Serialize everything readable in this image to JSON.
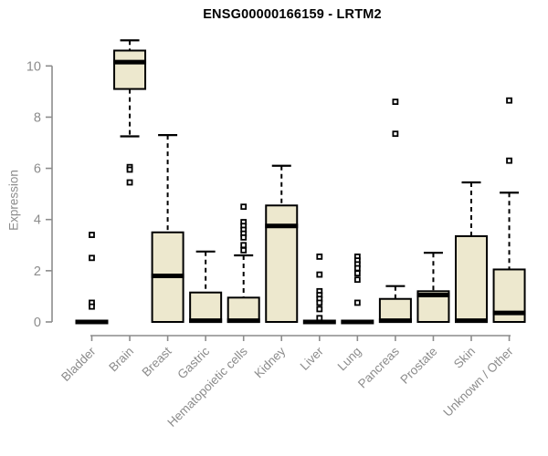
{
  "header": {
    "title": "ENSG00000166159 - LRTM2"
  },
  "colors": {
    "box_fill": "#EDE8CE",
    "box_stroke": "#000000",
    "median": "#000000",
    "whisker": "#000000",
    "outlier_stroke": "#000000",
    "outlier_fill": "#ffffff",
    "axis": "#8c8c8c",
    "tick_label": "#8c8c8c",
    "title_color": "#000000",
    "background": "#ffffff"
  },
  "chart_data": {
    "type": "boxplot",
    "title": "ENSG00000166159 - LRTM2",
    "xlabel": "",
    "ylabel": "Expression",
    "ylim": [
      0,
      11.2
    ],
    "yticks": [
      0,
      2,
      4,
      6,
      8,
      10
    ],
    "grid": false,
    "legend": "none",
    "categories": [
      "Bladder",
      "Brain",
      "Breast",
      "Gastric",
      "Hematopoietic cells",
      "Kidney",
      "Liver",
      "Lung",
      "Pancreas",
      "Prostate",
      "Skin",
      "Unknown / Other"
    ],
    "series": [
      {
        "name": "Bladder",
        "whisker_low": 0,
        "q1": 0,
        "median": 0,
        "q3": 0,
        "whisker_high": 0,
        "outliers": [
          3.4,
          2.5,
          0.75,
          0.6
        ]
      },
      {
        "name": "Brain",
        "whisker_low": 7.25,
        "q1": 9.1,
        "median": 10.15,
        "q3": 10.6,
        "whisker_high": 11.0,
        "outliers": [
          6.05,
          5.95,
          5.45
        ]
      },
      {
        "name": "Breast",
        "whisker_low": 0,
        "q1": 0,
        "median": 1.8,
        "q3": 3.5,
        "whisker_high": 7.3,
        "outliers": []
      },
      {
        "name": "Gastric",
        "whisker_low": 0,
        "q1": 0,
        "median": 0.05,
        "q3": 1.15,
        "whisker_high": 2.75,
        "outliers": []
      },
      {
        "name": "Hematopoietic cells",
        "whisker_low": 0,
        "q1": 0,
        "median": 0.05,
        "q3": 0.95,
        "whisker_high": 2.6,
        "outliers": [
          4.5,
          3.9,
          3.75,
          3.6,
          3.45,
          3.3,
          3.0,
          2.8
        ]
      },
      {
        "name": "Kidney",
        "whisker_low": 0,
        "q1": 0,
        "median": 3.75,
        "q3": 4.55,
        "whisker_high": 6.1,
        "outliers": []
      },
      {
        "name": "Liver",
        "whisker_low": 0,
        "q1": 0,
        "median": 0,
        "q3": 0,
        "whisker_high": 0,
        "outliers": [
          2.55,
          1.85,
          1.2,
          1.05,
          0.9,
          0.75,
          0.5,
          0.15
        ]
      },
      {
        "name": "Lung",
        "whisker_low": 0,
        "q1": 0,
        "median": 0,
        "q3": 0,
        "whisker_high": 0,
        "outliers": [
          2.55,
          2.4,
          2.25,
          2.1,
          1.9,
          1.65,
          0.75
        ]
      },
      {
        "name": "Pancreas",
        "whisker_low": 0,
        "q1": 0,
        "median": 0.05,
        "q3": 0.9,
        "whisker_high": 1.4,
        "outliers": [
          8.6,
          7.35
        ]
      },
      {
        "name": "Prostate",
        "whisker_low": 0,
        "q1": 0,
        "median": 1.05,
        "q3": 1.2,
        "whisker_high": 2.7,
        "outliers": []
      },
      {
        "name": "Skin",
        "whisker_low": 0,
        "q1": 0,
        "median": 0.05,
        "q3": 3.35,
        "whisker_high": 5.45,
        "outliers": []
      },
      {
        "name": "Unknown / Other",
        "whisker_low": 0,
        "q1": 0,
        "median": 0.35,
        "q3": 2.05,
        "whisker_high": 5.05,
        "outliers": [
          8.65,
          6.3
        ]
      }
    ]
  }
}
